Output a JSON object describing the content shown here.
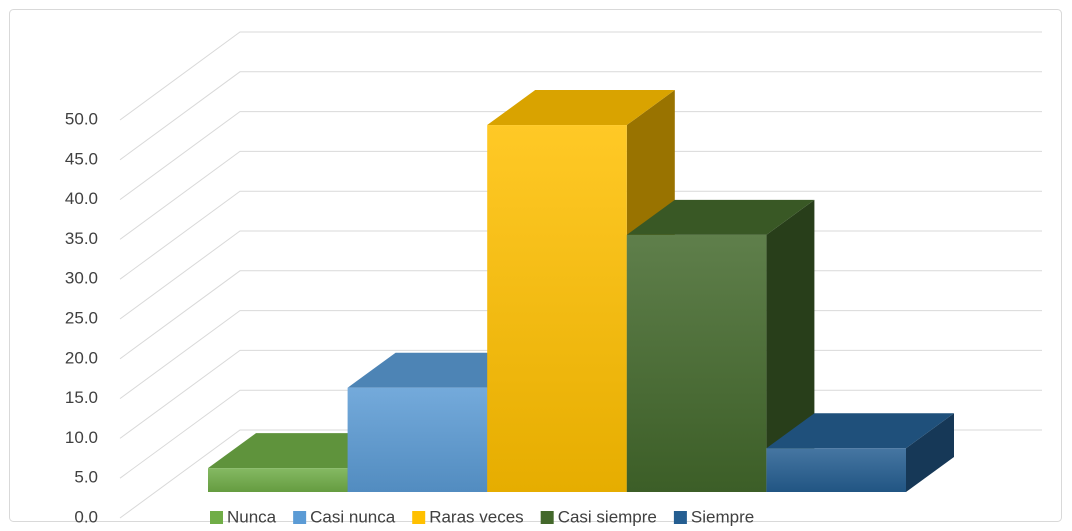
{
  "chart_data": {
    "type": "bar3d",
    "categories": [
      "Nunca",
      "Casi nunca",
      "Raras veces",
      "Casi siempre",
      "Siempre"
    ],
    "values": [
      3.0,
      13.1,
      46.1,
      32.3,
      5.5
    ],
    "colors": [
      "#70ad47",
      "#5b9bd5",
      "#ffc000",
      "#43682b",
      "#255e91"
    ],
    "ylim": [
      0,
      50
    ],
    "yticks": [
      {
        "value": 0,
        "label": "0.0"
      },
      {
        "value": 5,
        "label": "5.0"
      },
      {
        "value": 10,
        "label": "10.0"
      },
      {
        "value": 15,
        "label": "15.0"
      },
      {
        "value": 20,
        "label": "20.0"
      },
      {
        "value": 25,
        "label": "25.0"
      },
      {
        "value": 30,
        "label": "30.0"
      },
      {
        "value": 35,
        "label": "35.0"
      },
      {
        "value": 40,
        "label": "40.0"
      },
      {
        "value": 45,
        "label": "45.0"
      },
      {
        "value": 50,
        "label": "50.0"
      }
    ],
    "grid": true,
    "legend": "bottom"
  }
}
